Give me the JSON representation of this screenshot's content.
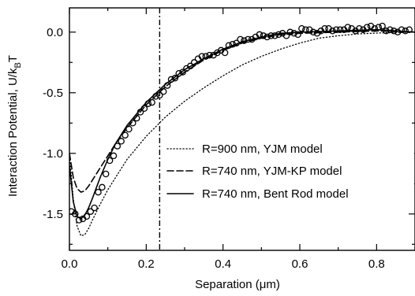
{
  "chart_data": {
    "type": "line",
    "xlabel_prefix": "Separation (",
    "xlabel_unit": "μm",
    "xlabel_suffix": ")",
    "ylabel_main": "Interaction Potential, U/k",
    "ylabel_sub": "B",
    "ylabel_end": "T",
    "xlim": [
      0.0,
      0.9
    ],
    "ylim": [
      -1.8,
      0.2
    ],
    "x_ticks": [
      0.0,
      0.2,
      0.4,
      0.6,
      0.8
    ],
    "x_tick_labels": [
      "0.0",
      "0.2",
      "0.4",
      "0.6",
      "0.8"
    ],
    "y_ticks": [
      0.0,
      -0.5,
      -1.0,
      -1.5
    ],
    "y_tick_labels": [
      "0.0",
      "-0.5",
      "-1.0",
      "-1.5"
    ],
    "vertical_line_x": 0.235,
    "legend_position": "lower-right",
    "series": [
      {
        "name": "R=900 nm, YJM model",
        "style": "dotted",
        "x": [
          0.0,
          0.01,
          0.02,
          0.03,
          0.04,
          0.05,
          0.06,
          0.08,
          0.1,
          0.12,
          0.15,
          0.2,
          0.25,
          0.3,
          0.35,
          0.4,
          0.45,
          0.5,
          0.55,
          0.6,
          0.65,
          0.7,
          0.75,
          0.8,
          0.85,
          0.9
        ],
        "y": [
          -1.0,
          -1.38,
          -1.6,
          -1.68,
          -1.67,
          -1.62,
          -1.55,
          -1.42,
          -1.3,
          -1.2,
          -1.05,
          -0.86,
          -0.7,
          -0.57,
          -0.46,
          -0.36,
          -0.27,
          -0.2,
          -0.14,
          -0.09,
          -0.05,
          -0.03,
          -0.015,
          -0.008,
          -0.003,
          0.0
        ]
      },
      {
        "name": "R=740 nm, YJM-KP model",
        "style": "dashed",
        "x": [
          0.0,
          0.01,
          0.02,
          0.03,
          0.04,
          0.05,
          0.06,
          0.08,
          0.1,
          0.12,
          0.15,
          0.2,
          0.25,
          0.3,
          0.35,
          0.4,
          0.45,
          0.5,
          0.55,
          0.6,
          0.7,
          0.8,
          0.9
        ],
        "y": [
          -1.0,
          -1.2,
          -1.29,
          -1.32,
          -1.31,
          -1.27,
          -1.22,
          -1.12,
          -1.02,
          -0.92,
          -0.79,
          -0.6,
          -0.45,
          -0.33,
          -0.23,
          -0.15,
          -0.09,
          -0.05,
          -0.02,
          -0.01,
          0.0,
          0.01,
          0.0
        ]
      },
      {
        "name": "R=740 nm, Bent Rod model",
        "style": "solid",
        "x": [
          0.0,
          0.01,
          0.02,
          0.03,
          0.04,
          0.05,
          0.06,
          0.08,
          0.1,
          0.12,
          0.15,
          0.2,
          0.25,
          0.3,
          0.35,
          0.4,
          0.45,
          0.5,
          0.55,
          0.6,
          0.7,
          0.8,
          0.9
        ],
        "y": [
          -1.1,
          -1.4,
          -1.52,
          -1.54,
          -1.51,
          -1.45,
          -1.37,
          -1.2,
          -1.05,
          -0.92,
          -0.77,
          -0.58,
          -0.43,
          -0.31,
          -0.22,
          -0.14,
          -0.08,
          -0.04,
          -0.01,
          0.0,
          0.01,
          0.02,
          0.0
        ]
      },
      {
        "name": "data",
        "style": "markers",
        "x": [
          0.005,
          0.015,
          0.025,
          0.035,
          0.045,
          0.055,
          0.065,
          0.075,
          0.085,
          0.095,
          0.105,
          0.115,
          0.125,
          0.135,
          0.145,
          0.155,
          0.165,
          0.175,
          0.185,
          0.195,
          0.205,
          0.215,
          0.225,
          0.235,
          0.245,
          0.255,
          0.265,
          0.275,
          0.285,
          0.295,
          0.305,
          0.315,
          0.325,
          0.335,
          0.345,
          0.355,
          0.365,
          0.375,
          0.385,
          0.395,
          0.405,
          0.415,
          0.425,
          0.435,
          0.445,
          0.455,
          0.465,
          0.475,
          0.485,
          0.495,
          0.505,
          0.515,
          0.525,
          0.535,
          0.545,
          0.555,
          0.565,
          0.575,
          0.585,
          0.595,
          0.605,
          0.615,
          0.625,
          0.635,
          0.645,
          0.655,
          0.665,
          0.675,
          0.685,
          0.695,
          0.705,
          0.715,
          0.725,
          0.735,
          0.745,
          0.755,
          0.765,
          0.775,
          0.785,
          0.795,
          0.805,
          0.815,
          0.825,
          0.835,
          0.845,
          0.855,
          0.865,
          0.875,
          0.885
        ],
        "y": [
          -1.48,
          -1.5,
          -1.55,
          -1.54,
          -1.52,
          -1.48,
          -1.45,
          -1.32,
          -1.28,
          -1.17,
          -1.06,
          -1.02,
          -0.94,
          -0.9,
          -0.85,
          -0.8,
          -0.75,
          -0.71,
          -0.66,
          -0.63,
          -0.59,
          -0.58,
          -0.53,
          -0.52,
          -0.49,
          -0.44,
          -0.39,
          -0.38,
          -0.34,
          -0.33,
          -0.3,
          -0.28,
          -0.25,
          -0.22,
          -0.2,
          -0.2,
          -0.19,
          -0.19,
          -0.17,
          -0.15,
          -0.17,
          -0.11,
          -0.1,
          -0.09,
          -0.06,
          -0.07,
          -0.06,
          -0.06,
          -0.04,
          -0.02,
          -0.03,
          -0.04,
          -0.03,
          -0.03,
          -0.02,
          -0.01,
          -0.03,
          0.0,
          -0.01,
          -0.02,
          0.03,
          0.02,
          0.02,
          0.0,
          -0.01,
          0.01,
          0.03,
          0.03,
          0.01,
          0.02,
          0.02,
          0.02,
          0.04,
          0.03,
          0.01,
          0.03,
          0.02,
          0.04,
          0.05,
          0.03,
          0.04,
          0.05,
          0.01,
          0.02,
          0.01,
          0.0,
          0.02,
          0.01,
          0.02
        ]
      }
    ]
  }
}
